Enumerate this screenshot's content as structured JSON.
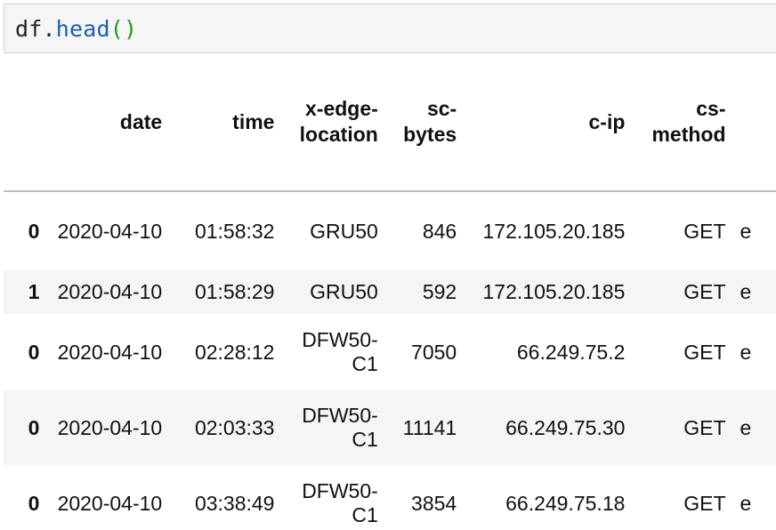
{
  "cell": {
    "code_var": "df",
    "code_dot": ".",
    "code_fn": "head",
    "code_parens": "()"
  },
  "table": {
    "columns": [
      {
        "name": "date",
        "lines": [
          "date"
        ]
      },
      {
        "name": "time",
        "lines": [
          "time"
        ]
      },
      {
        "name": "x-edge-location",
        "lines": [
          "x-edge-",
          "location"
        ]
      },
      {
        "name": "sc-bytes",
        "lines": [
          "sc-",
          "bytes"
        ]
      },
      {
        "name": "c-ip",
        "lines": [
          "c-ip"
        ]
      },
      {
        "name": "cs-method",
        "lines": [
          "cs-",
          "method"
        ]
      }
    ],
    "rows": [
      {
        "index": "0",
        "date": "2020-04-10",
        "time": "01:58:32",
        "edge": "GRU50",
        "edge2": "",
        "sc_bytes": "846",
        "c_ip": "172.105.20.185",
        "cs_method": "GET",
        "next": "e"
      },
      {
        "index": "1",
        "date": "2020-04-10",
        "time": "01:58:29",
        "edge": "GRU50",
        "edge2": "",
        "sc_bytes": "592",
        "c_ip": "172.105.20.185",
        "cs_method": "GET",
        "next": "e"
      },
      {
        "index": "0",
        "date": "2020-04-10",
        "time": "02:28:12",
        "edge": "DFW50-",
        "edge2": "C1",
        "sc_bytes": "7050",
        "c_ip": "66.249.75.2",
        "cs_method": "GET",
        "next": "e"
      },
      {
        "index": "0",
        "date": "2020-04-10",
        "time": "02:03:33",
        "edge": "DFW50-",
        "edge2": "C1",
        "sc_bytes": "11141",
        "c_ip": "66.249.75.30",
        "cs_method": "GET",
        "next": "e"
      },
      {
        "index": "0",
        "date": "2020-04-10",
        "time": "03:38:49",
        "edge": "DFW50-",
        "edge2": "C1",
        "sc_bytes": "3854",
        "c_ip": "66.249.75.18",
        "cs_method": "GET",
        "next": "e"
      }
    ]
  }
}
